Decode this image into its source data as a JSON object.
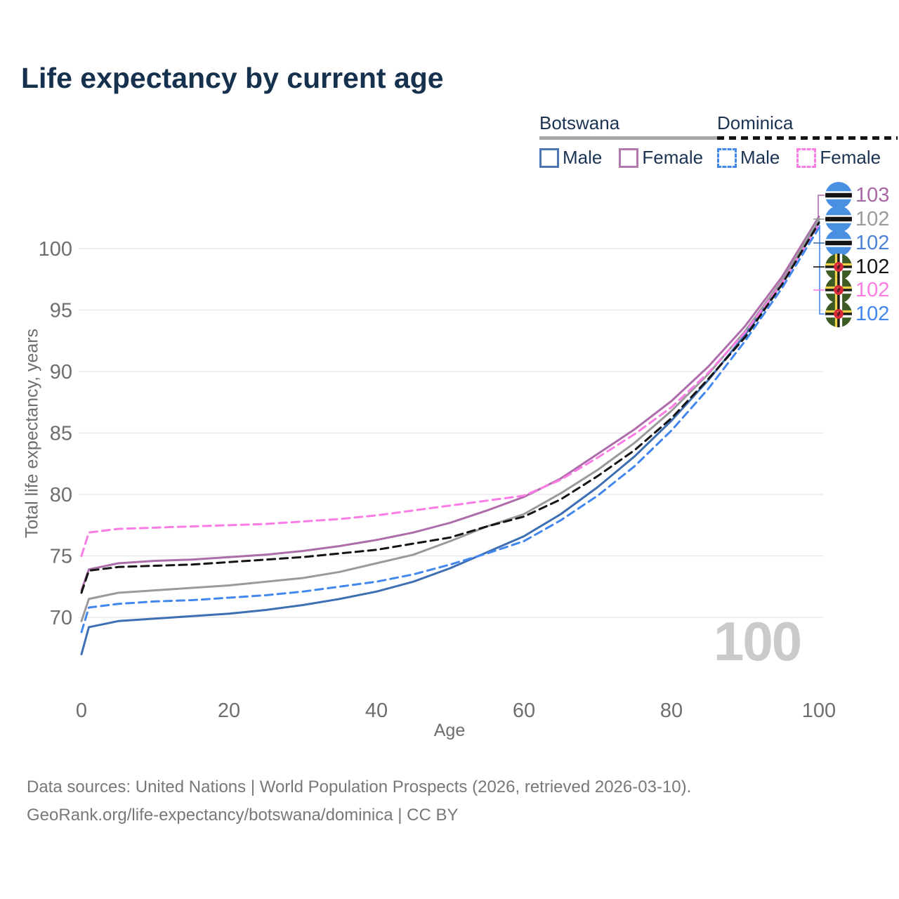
{
  "title": "Life expectancy by current age",
  "watermark": "100",
  "legend": {
    "groups": [
      {
        "label": "Botswana",
        "line_style": "solid",
        "items": [
          {
            "label": "Male"
          },
          {
            "label": "Female"
          }
        ]
      },
      {
        "label": "Dominica",
        "line_style": "dashed",
        "items": [
          {
            "label": "Male"
          },
          {
            "label": "Female"
          }
        ]
      }
    ]
  },
  "colors": {
    "title": "#16314d",
    "legend_text": "#1d3352",
    "axis_text": "#6e6e6e",
    "grid": "#e5e5e5",
    "footer": "#787878",
    "watermark": "#cacaca",
    "botswana_male": "#3e6fb3",
    "botswana_female": "#ad6caa",
    "botswana_both": "#9a9a9a",
    "dominica_male": "#4287ee",
    "dominica_female": "#fb7ce4",
    "dominica_both": "#141414"
  },
  "chart_data": {
    "type": "line",
    "title": "Life expectancy by current age",
    "xlabel": "Age",
    "ylabel": "Total life expectancy, years",
    "xlim": [
      0,
      100
    ],
    "ylim": [
      66,
      104
    ],
    "x_ticks": [
      0,
      20,
      40,
      60,
      80,
      100
    ],
    "y_ticks": [
      70,
      75,
      80,
      85,
      90,
      95,
      100
    ],
    "grid": true,
    "legend_position": "top-right",
    "x": [
      0,
      1,
      5,
      10,
      15,
      20,
      25,
      30,
      35,
      40,
      45,
      50,
      55,
      60,
      65,
      70,
      75,
      80,
      85,
      90,
      95,
      100
    ],
    "series": [
      {
        "name": "Botswana Male",
        "country": "Botswana",
        "sex": "Male",
        "style": "solid",
        "color": "#3e6fb3",
        "values": [
          67.0,
          69.2,
          69.7,
          69.9,
          70.1,
          70.3,
          70.6,
          71.0,
          71.5,
          72.1,
          72.9,
          74.0,
          75.3,
          76.6,
          78.4,
          80.6,
          83.1,
          86.0,
          89.3,
          93.0,
          97.2,
          102.2
        ]
      },
      {
        "name": "Botswana Female",
        "country": "Botswana",
        "sex": "Female",
        "style": "solid",
        "color": "#ad6caa",
        "values": [
          72.2,
          73.9,
          74.4,
          74.6,
          74.7,
          74.9,
          75.1,
          75.4,
          75.8,
          76.3,
          76.9,
          77.7,
          78.7,
          79.8,
          81.3,
          83.3,
          85.3,
          87.6,
          90.4,
          93.7,
          97.7,
          102.6
        ]
      },
      {
        "name": "Botswana Both sexes",
        "country": "Botswana",
        "sex": "Both",
        "style": "solid",
        "color": "#9a9a9a",
        "values": [
          69.7,
          71.5,
          72.0,
          72.2,
          72.4,
          72.6,
          72.9,
          73.2,
          73.7,
          74.4,
          75.1,
          76.2,
          77.4,
          78.4,
          80.1,
          82.0,
          84.2,
          86.8,
          89.8,
          93.3,
          97.4,
          102.4
        ]
      },
      {
        "name": "Dominica Male",
        "country": "Dominica",
        "sex": "Male",
        "style": "dashed",
        "color": "#4287ee",
        "values": [
          68.8,
          70.8,
          71.1,
          71.3,
          71.4,
          71.6,
          71.8,
          72.1,
          72.5,
          72.9,
          73.5,
          74.3,
          75.2,
          76.2,
          77.9,
          79.9,
          82.3,
          85.2,
          88.6,
          92.5,
          96.8,
          101.7
        ]
      },
      {
        "name": "Dominica Female",
        "country": "Dominica",
        "sex": "Female",
        "style": "dashed",
        "color": "#fb7ce4",
        "values": [
          75.0,
          76.9,
          77.2,
          77.3,
          77.4,
          77.5,
          77.6,
          77.8,
          78.0,
          78.3,
          78.7,
          79.1,
          79.5,
          79.9,
          81.2,
          83.0,
          84.9,
          87.1,
          89.9,
          93.2,
          97.2,
          102.0
        ]
      },
      {
        "name": "Dominica Both sexes",
        "country": "Dominica",
        "sex": "Both",
        "style": "dashed",
        "color": "#141414",
        "values": [
          72.0,
          73.8,
          74.1,
          74.2,
          74.3,
          74.5,
          74.7,
          74.9,
          75.2,
          75.5,
          76.0,
          76.5,
          77.4,
          78.2,
          79.6,
          81.5,
          83.6,
          86.2,
          89.4,
          92.8,
          97.1,
          102.1
        ]
      }
    ]
  },
  "end_labels": [
    {
      "value": "103",
      "color": "#a867a3",
      "flag": "botswana",
      "series": "Botswana Female"
    },
    {
      "value": "102",
      "color": "#9b9b9b",
      "flag": "botswana",
      "series": "Botswana Both sexes"
    },
    {
      "value": "102",
      "color": "#4e82d8",
      "flag": "botswana",
      "series": "Botswana Male"
    },
    {
      "value": "102",
      "color": "#141414",
      "flag": "dominica",
      "series": "Dominica Both sexes"
    },
    {
      "value": "102",
      "color": "#f97ce1",
      "flag": "dominica",
      "series": "Dominica Female"
    },
    {
      "value": "102",
      "color": "#4287ee",
      "flag": "dominica",
      "series": "Dominica Male"
    }
  ],
  "footer": {
    "line1": "Data sources: United Nations | World Population Prospects (2026, retrieved 2026-03-10).",
    "line2": "GeoRank.org/life-expectancy/botswana/dominica | CC BY"
  }
}
